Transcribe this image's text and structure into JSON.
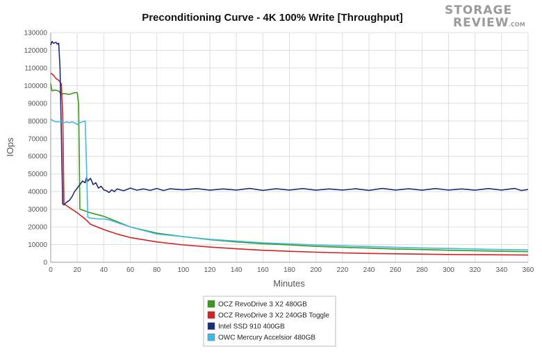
{
  "watermark": {
    "line1": "STORAGE",
    "line2": "REVIEW",
    "suffix": ".COM"
  },
  "chart_data": {
    "type": "line",
    "title": "Preconditioning Curve - 4K 100% Write [Throughput]",
    "xlabel": "Minutes",
    "ylabel": "IOps",
    "xlim": [
      0,
      360
    ],
    "ylim": [
      0,
      130000
    ],
    "xticks": [
      0,
      20,
      40,
      60,
      80,
      100,
      120,
      140,
      160,
      180,
      200,
      220,
      240,
      260,
      280,
      300,
      320,
      340,
      360
    ],
    "yticks": [
      0,
      10000,
      20000,
      30000,
      40000,
      50000,
      60000,
      70000,
      80000,
      90000,
      100000,
      110000,
      120000,
      130000
    ],
    "grid": true,
    "legend_position": "bottom-center",
    "series": [
      {
        "name": "OCZ RevoDrive 3 X2 480GB",
        "color": "#3a9a1a",
        "points": [
          [
            0,
            101000
          ],
          [
            1,
            97000
          ],
          [
            3,
            97500
          ],
          [
            6,
            97000
          ],
          [
            8,
            95000
          ],
          [
            10,
            95500
          ],
          [
            14,
            95000
          ],
          [
            18,
            96000
          ],
          [
            20,
            96000
          ],
          [
            21,
            90000
          ],
          [
            22,
            30000
          ],
          [
            24,
            29500
          ],
          [
            30,
            28000
          ],
          [
            40,
            26000
          ],
          [
            50,
            23000
          ],
          [
            60,
            20000
          ],
          [
            80,
            16500
          ],
          [
            100,
            14500
          ],
          [
            120,
            12800
          ],
          [
            140,
            11500
          ],
          [
            160,
            10500
          ],
          [
            180,
            9800
          ],
          [
            200,
            9000
          ],
          [
            220,
            8500
          ],
          [
            240,
            8000
          ],
          [
            260,
            7500
          ],
          [
            280,
            7200
          ],
          [
            300,
            6800
          ],
          [
            320,
            6500
          ],
          [
            340,
            6200
          ],
          [
            360,
            6000
          ]
        ]
      },
      {
        "name": "OCZ RevoDrive 3 X2 240GB Toggle",
        "color": "#d32020",
        "points": [
          [
            0,
            107000
          ],
          [
            2,
            106000
          ],
          [
            4,
            104000
          ],
          [
            6,
            103000
          ],
          [
            8,
            101000
          ],
          [
            9,
            85000
          ],
          [
            10,
            33000
          ],
          [
            12,
            32000
          ],
          [
            16,
            30000
          ],
          [
            20,
            28000
          ],
          [
            26,
            24500
          ],
          [
            30,
            21500
          ],
          [
            40,
            18500
          ],
          [
            50,
            16000
          ],
          [
            60,
            14000
          ],
          [
            80,
            11500
          ],
          [
            100,
            9800
          ],
          [
            120,
            8600
          ],
          [
            140,
            7600
          ],
          [
            160,
            6800
          ],
          [
            180,
            6200
          ],
          [
            200,
            5700
          ],
          [
            220,
            5300
          ],
          [
            240,
            5000
          ],
          [
            260,
            4800
          ],
          [
            280,
            4600
          ],
          [
            300,
            4400
          ],
          [
            320,
            4300
          ],
          [
            340,
            4200
          ],
          [
            360,
            4100
          ]
        ]
      },
      {
        "name": "Intel SSD 910 400GB",
        "color": "#1e2a7a",
        "points": [
          [
            0,
            123000
          ],
          [
            1,
            125000
          ],
          [
            2,
            124000
          ],
          [
            4,
            124500
          ],
          [
            5,
            123500
          ],
          [
            6,
            124000
          ],
          [
            7,
            110000
          ],
          [
            8,
            72000
          ],
          [
            9,
            33000
          ],
          [
            10,
            32500
          ],
          [
            12,
            34000
          ],
          [
            14,
            35000
          ],
          [
            16,
            37000
          ],
          [
            18,
            40000
          ],
          [
            20,
            42000
          ],
          [
            22,
            44000
          ],
          [
            24,
            46000
          ],
          [
            26,
            45000
          ],
          [
            27,
            48000
          ],
          [
            28,
            46000
          ],
          [
            30,
            47500
          ],
          [
            32,
            44000
          ],
          [
            34,
            45000
          ],
          [
            36,
            42000
          ],
          [
            38,
            43000
          ],
          [
            40,
            41000
          ],
          [
            42,
            40500
          ],
          [
            44,
            39500
          ],
          [
            46,
            41000
          ],
          [
            48,
            40000
          ],
          [
            50,
            41500
          ],
          [
            55,
            40500
          ],
          [
            60,
            42000
          ],
          [
            65,
            40800
          ],
          [
            70,
            41500
          ],
          [
            75,
            40700
          ],
          [
            80,
            41800
          ],
          [
            85,
            40600
          ],
          [
            90,
            41600
          ],
          [
            100,
            41000
          ],
          [
            110,
            41700
          ],
          [
            120,
            40800
          ],
          [
            130,
            41500
          ],
          [
            140,
            40900
          ],
          [
            150,
            41800
          ],
          [
            160,
            40700
          ],
          [
            170,
            41600
          ],
          [
            180,
            40900
          ],
          [
            190,
            41700
          ],
          [
            200,
            40800
          ],
          [
            210,
            41500
          ],
          [
            220,
            40900
          ],
          [
            230,
            41600
          ],
          [
            240,
            40700
          ],
          [
            250,
            41800
          ],
          [
            260,
            40900
          ],
          [
            270,
            41600
          ],
          [
            280,
            40800
          ],
          [
            290,
            41700
          ],
          [
            300,
            40900
          ],
          [
            310,
            41500
          ],
          [
            320,
            40800
          ],
          [
            330,
            41700
          ],
          [
            340,
            40900
          ],
          [
            350,
            41800
          ],
          [
            355,
            40600
          ],
          [
            360,
            41200
          ]
        ]
      },
      {
        "name": "OWC Mercury Accelsior 480GB",
        "color": "#40b8e8",
        "points": [
          [
            0,
            81000
          ],
          [
            2,
            80000
          ],
          [
            4,
            79500
          ],
          [
            6,
            79500
          ],
          [
            8,
            80000
          ],
          [
            10,
            79000
          ],
          [
            12,
            79500
          ],
          [
            14,
            79000
          ],
          [
            16,
            79500
          ],
          [
            18,
            79000
          ],
          [
            20,
            78000
          ],
          [
            22,
            79000
          ],
          [
            24,
            79500
          ],
          [
            26,
            80000
          ],
          [
            27,
            55000
          ],
          [
            28,
            25500
          ],
          [
            30,
            25000
          ],
          [
            36,
            24500
          ],
          [
            40,
            24500
          ],
          [
            44,
            24000
          ],
          [
            50,
            22500
          ],
          [
            60,
            20000
          ],
          [
            80,
            16000
          ],
          [
            100,
            14500
          ],
          [
            120,
            13000
          ],
          [
            140,
            12000
          ],
          [
            160,
            11000
          ],
          [
            180,
            10400
          ],
          [
            200,
            9800
          ],
          [
            220,
            9300
          ],
          [
            240,
            8900
          ],
          [
            260,
            8500
          ],
          [
            280,
            8100
          ],
          [
            300,
            7800
          ],
          [
            320,
            7500
          ],
          [
            340,
            7200
          ],
          [
            360,
            7000
          ]
        ]
      }
    ]
  }
}
